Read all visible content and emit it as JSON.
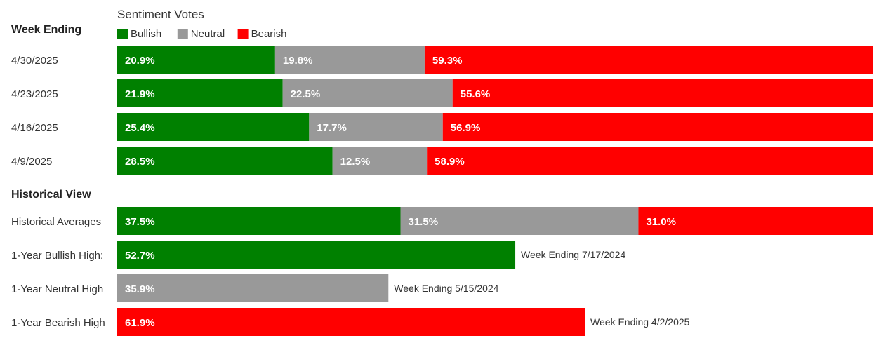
{
  "chart_data": {
    "type": "bar",
    "stacked": true,
    "orientation": "horizontal",
    "title": "Sentiment Votes",
    "legend": {
      "placement": "top-left",
      "entries": [
        {
          "name": "Bullish",
          "color": "#008000"
        },
        {
          "name": "Neutral",
          "color": "#999999"
        },
        {
          "name": "Bearish",
          "color": "#ff0000"
        }
      ]
    },
    "weekly": {
      "header": "Week Ending",
      "rows": [
        {
          "label": "4/30/2025",
          "values": [
            20.9,
            19.8,
            59.3
          ]
        },
        {
          "label": "4/23/2025",
          "values": [
            21.9,
            22.5,
            55.6
          ]
        },
        {
          "label": "4/16/2025",
          "values": [
            25.4,
            17.7,
            56.9
          ]
        },
        {
          "label": "4/9/2025",
          "values": [
            28.5,
            12.5,
            58.9
          ]
        }
      ]
    },
    "historical": {
      "header": "Historical View",
      "averages": {
        "label": "Historical Averages",
        "values": [
          37.5,
          31.5,
          31.0
        ]
      },
      "highs": [
        {
          "label": "1-Year Bullish High:",
          "series": "Bullish",
          "value": 52.7,
          "note": "Week Ending 7/17/2024"
        },
        {
          "label": "1-Year Neutral High",
          "series": "Neutral",
          "value": 35.9,
          "note": "Week Ending 5/15/2024"
        },
        {
          "label": "1-Year Bearish High",
          "series": "Bearish",
          "value": 61.9,
          "note": "Week Ending 4/2/2025"
        }
      ]
    },
    "xlim": [
      0,
      100
    ]
  }
}
